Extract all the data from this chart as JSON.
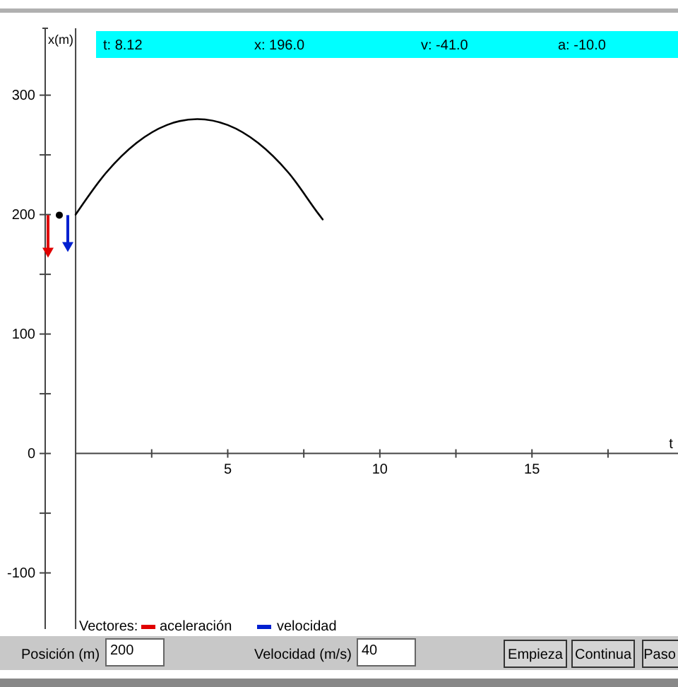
{
  "chart_data": {
    "type": "line",
    "ylabel": "x(m)",
    "xlabel": "t",
    "x": [
      0,
      1,
      2,
      3,
      4,
      5,
      6,
      7,
      8,
      8.12
    ],
    "series": [
      {
        "color": "#000000",
        "values": [
          200,
          235,
          260,
          275,
          280,
          275,
          260,
          235,
          200,
          196
        ]
      }
    ],
    "xlim": [
      -1,
      19.8
    ],
    "ylim": [
      -147,
      356
    ],
    "xticks": [
      {
        "value": 2.5,
        "label": null
      },
      5,
      {
        "value": 7.5,
        "label": null
      },
      10,
      {
        "value": 12.5,
        "label": null
      },
      15,
      {
        "value": 17.5,
        "label": null
      }
    ],
    "yticks": [
      -100,
      {
        "value": -50,
        "label": null
      },
      0,
      {
        "value": 50,
        "label": null
      },
      100,
      {
        "value": 150,
        "label": null
      },
      200,
      {
        "value": 250,
        "label": null
      },
      300
    ],
    "grid": false,
    "marker": "none",
    "line_style": "solid",
    "annotations": [
      "t: 8.12",
      "x: 196.0",
      "v: -41.0",
      "a: -10.0",
      "Vectores:",
      "aceleración",
      "velocidad",
      "Posición (m)",
      "200",
      "Velocidad (m/s)",
      "40",
      "Empieza",
      "Continua",
      "Paso"
    ]
  }
}
